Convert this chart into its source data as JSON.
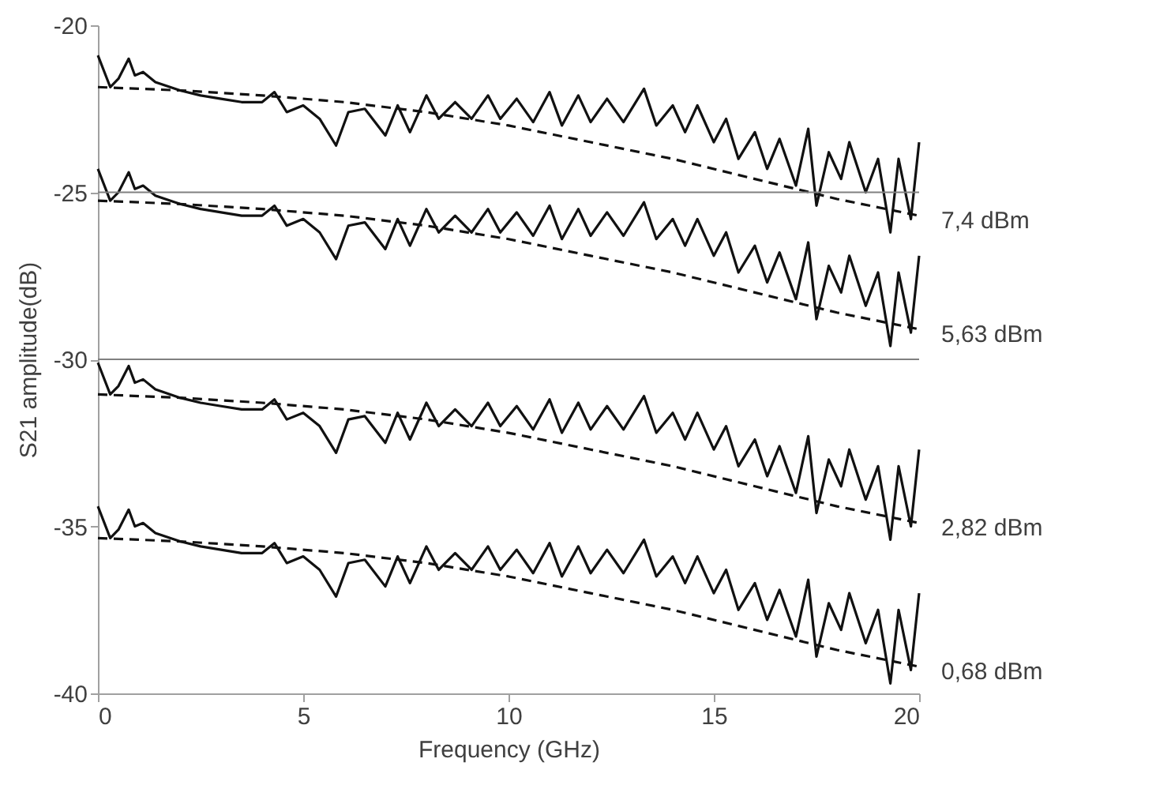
{
  "chart_data": {
    "type": "line",
    "xlabel": "Frequency (GHz)",
    "ylabel": "S21 amplitude(dB)",
    "xlim": [
      0,
      20
    ],
    "xticks": [
      0,
      5,
      10,
      15,
      20
    ],
    "ylim": [
      -40,
      -20
    ],
    "yticks": [
      -40,
      -35,
      -30,
      -25,
      -20
    ],
    "grid": false,
    "legend": false,
    "marker": "none",
    "ref_lines": [
      {
        "axis": "y",
        "value": -25,
        "color": "#808080"
      },
      {
        "axis": "y",
        "value": -30,
        "color": "#808080"
      }
    ],
    "series": [
      {
        "name": "7,4 dBm",
        "color": "#111111",
        "line_style": "solid",
        "x": [
          0,
          0.3,
          0.5,
          0.75,
          0.9,
          1.1,
          1.4,
          2,
          2.5,
          3,
          3.5,
          4,
          4.3,
          4.6,
          5,
          5.4,
          5.8,
          6.1,
          6.5,
          7,
          7.3,
          7.6,
          8,
          8.3,
          8.7,
          9.1,
          9.5,
          9.8,
          10.2,
          10.6,
          11,
          11.3,
          11.7,
          12,
          12.4,
          12.8,
          13.3,
          13.6,
          14,
          14.3,
          14.6,
          15,
          15.3,
          15.6,
          16,
          16.3,
          16.6,
          17,
          17.3,
          17.5,
          17.8,
          18.1,
          18.3,
          18.7,
          19,
          19.3,
          19.5,
          19.8,
          20
        ],
        "values": [
          -20.9,
          -21.85,
          -21.6,
          -21.0,
          -21.5,
          -21.4,
          -21.7,
          -21.95,
          -22.1,
          -22.2,
          -22.3,
          -22.3,
          -22.0,
          -22.6,
          -22.4,
          -22.8,
          -23.6,
          -22.6,
          -22.5,
          -23.3,
          -22.4,
          -23.2,
          -22.1,
          -22.8,
          -22.3,
          -22.8,
          -22.1,
          -22.8,
          -22.2,
          -22.9,
          -22.0,
          -23.0,
          -22.1,
          -22.9,
          -22.2,
          -22.9,
          -21.9,
          -23.0,
          -22.4,
          -23.2,
          -22.4,
          -23.5,
          -22.8,
          -24.0,
          -23.2,
          -24.3,
          -23.4,
          -24.8,
          -23.1,
          -25.4,
          -23.8,
          -24.6,
          -23.5,
          -25.0,
          -24.0,
          -26.2,
          -24.0,
          -25.8,
          -23.5
        ]
      },
      {
        "color": "#111111",
        "line_style": "dashed",
        "x": [
          0,
          2,
          4,
          6,
          8,
          10,
          12,
          14,
          16,
          18,
          20
        ],
        "values": [
          -21.85,
          -21.95,
          -22.1,
          -22.3,
          -22.6,
          -23.0,
          -23.5,
          -24.0,
          -24.6,
          -25.2,
          -25.7
        ]
      },
      {
        "name": "5,63 dBm",
        "color": "#111111",
        "line_style": "solid",
        "x": [
          0,
          0.3,
          0.5,
          0.75,
          0.9,
          1.1,
          1.4,
          2,
          2.5,
          3,
          3.5,
          4,
          4.3,
          4.6,
          5,
          5.4,
          5.8,
          6.1,
          6.5,
          7,
          7.3,
          7.6,
          8,
          8.3,
          8.7,
          9.1,
          9.5,
          9.8,
          10.2,
          10.6,
          11,
          11.3,
          11.7,
          12,
          12.4,
          12.8,
          13.3,
          13.6,
          14,
          14.3,
          14.6,
          15,
          15.3,
          15.6,
          16,
          16.3,
          16.6,
          17,
          17.3,
          17.5,
          17.8,
          18.1,
          18.3,
          18.7,
          19,
          19.3,
          19.5,
          19.8,
          20
        ],
        "values": [
          -24.3,
          -25.25,
          -25.0,
          -24.4,
          -24.9,
          -24.8,
          -25.1,
          -25.35,
          -25.5,
          -25.6,
          -25.7,
          -25.7,
          -25.4,
          -26.0,
          -25.8,
          -26.2,
          -27.0,
          -26.0,
          -25.9,
          -26.7,
          -25.8,
          -26.6,
          -25.5,
          -26.2,
          -25.7,
          -26.2,
          -25.5,
          -26.2,
          -25.6,
          -26.3,
          -25.4,
          -26.4,
          -25.5,
          -26.3,
          -25.6,
          -26.3,
          -25.3,
          -26.4,
          -25.8,
          -26.6,
          -25.8,
          -26.9,
          -26.2,
          -27.4,
          -26.6,
          -27.7,
          -26.8,
          -28.2,
          -26.5,
          -28.8,
          -27.2,
          -28.0,
          -26.9,
          -28.4,
          -27.4,
          -29.6,
          -27.4,
          -29.2,
          -26.9
        ]
      },
      {
        "color": "#111111",
        "line_style": "dashed",
        "x": [
          0,
          2,
          4,
          6,
          8,
          10,
          12,
          14,
          16,
          18,
          20
        ],
        "values": [
          -25.25,
          -25.35,
          -25.5,
          -25.7,
          -26.0,
          -26.4,
          -26.9,
          -27.4,
          -28.0,
          -28.6,
          -29.1
        ]
      },
      {
        "name": "2,82 dBm",
        "color": "#111111",
        "line_style": "solid",
        "x": [
          0,
          0.3,
          0.5,
          0.75,
          0.9,
          1.1,
          1.4,
          2,
          2.5,
          3,
          3.5,
          4,
          4.3,
          4.6,
          5,
          5.4,
          5.8,
          6.1,
          6.5,
          7,
          7.3,
          7.6,
          8,
          8.3,
          8.7,
          9.1,
          9.5,
          9.8,
          10.2,
          10.6,
          11,
          11.3,
          11.7,
          12,
          12.4,
          12.8,
          13.3,
          13.6,
          14,
          14.3,
          14.6,
          15,
          15.3,
          15.6,
          16,
          16.3,
          16.6,
          17,
          17.3,
          17.5,
          17.8,
          18.1,
          18.3,
          18.7,
          19,
          19.3,
          19.5,
          19.8,
          20
        ],
        "values": [
          -30.1,
          -31.05,
          -30.8,
          -30.2,
          -30.7,
          -30.6,
          -30.9,
          -31.15,
          -31.3,
          -31.4,
          -31.5,
          -31.5,
          -31.2,
          -31.8,
          -31.6,
          -32.0,
          -32.8,
          -31.8,
          -31.7,
          -32.5,
          -31.6,
          -32.4,
          -31.3,
          -32.0,
          -31.5,
          -32.0,
          -31.3,
          -32.0,
          -31.4,
          -32.1,
          -31.2,
          -32.2,
          -31.3,
          -32.1,
          -31.4,
          -32.1,
          -31.1,
          -32.2,
          -31.6,
          -32.4,
          -31.6,
          -32.7,
          -32.0,
          -33.2,
          -32.4,
          -33.5,
          -32.6,
          -34.0,
          -32.3,
          -34.6,
          -33.0,
          -33.8,
          -32.7,
          -34.2,
          -33.2,
          -35.4,
          -33.2,
          -35.0,
          -32.7
        ]
      },
      {
        "color": "#111111",
        "line_style": "dashed",
        "x": [
          0,
          2,
          4,
          6,
          8,
          10,
          12,
          14,
          16,
          18,
          20
        ],
        "values": [
          -31.05,
          -31.15,
          -31.3,
          -31.5,
          -31.8,
          -32.2,
          -32.7,
          -33.2,
          -33.8,
          -34.4,
          -34.9
        ]
      },
      {
        "name": "0,68 dBm",
        "color": "#111111",
        "line_style": "solid",
        "x": [
          0,
          0.3,
          0.5,
          0.75,
          0.9,
          1.1,
          1.4,
          2,
          2.5,
          3,
          3.5,
          4,
          4.3,
          4.6,
          5,
          5.4,
          5.8,
          6.1,
          6.5,
          7,
          7.3,
          7.6,
          8,
          8.3,
          8.7,
          9.1,
          9.5,
          9.8,
          10.2,
          10.6,
          11,
          11.3,
          11.7,
          12,
          12.4,
          12.8,
          13.3,
          13.6,
          14,
          14.3,
          14.6,
          15,
          15.3,
          15.6,
          16,
          16.3,
          16.6,
          17,
          17.3,
          17.5,
          17.8,
          18.1,
          18.3,
          18.7,
          19,
          19.3,
          19.5,
          19.8,
          20
        ],
        "values": [
          -34.4,
          -35.35,
          -35.1,
          -34.5,
          -35.0,
          -34.9,
          -35.2,
          -35.45,
          -35.6,
          -35.7,
          -35.8,
          -35.8,
          -35.5,
          -36.1,
          -35.9,
          -36.3,
          -37.1,
          -36.1,
          -36.0,
          -36.8,
          -35.9,
          -36.7,
          -35.6,
          -36.3,
          -35.8,
          -36.3,
          -35.6,
          -36.3,
          -35.7,
          -36.4,
          -35.5,
          -36.5,
          -35.6,
          -36.4,
          -35.7,
          -36.4,
          -35.4,
          -36.5,
          -35.9,
          -36.7,
          -35.9,
          -37.0,
          -36.3,
          -37.5,
          -36.7,
          -37.8,
          -36.9,
          -38.3,
          -36.6,
          -38.9,
          -37.3,
          -38.1,
          -37.0,
          -38.5,
          -37.5,
          -39.7,
          -37.5,
          -39.3,
          -37.0
        ]
      },
      {
        "color": "#111111",
        "line_style": "dashed",
        "x": [
          0,
          2,
          4,
          6,
          8,
          10,
          12,
          14,
          16,
          18,
          20
        ],
        "values": [
          -35.35,
          -35.45,
          -35.6,
          -35.8,
          -36.1,
          -36.5,
          -37.0,
          -37.5,
          -38.1,
          -38.7,
          -39.2
        ]
      }
    ]
  }
}
